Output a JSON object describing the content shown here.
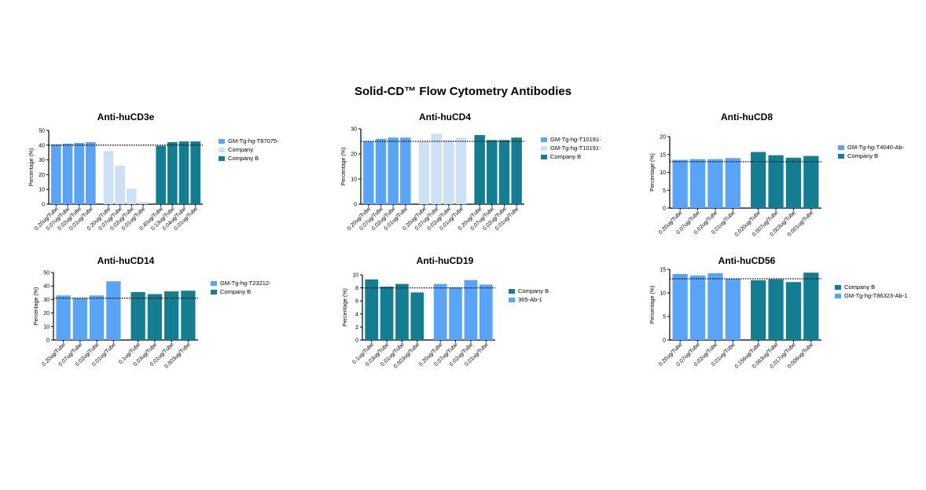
{
  "page": {
    "title": "Solid-CD™ Flow Cytometry Antibodies"
  },
  "colors": {
    "blue": "#5aa4f8",
    "light": "#cce0f6",
    "teal": "#137e92",
    "refline": "#000000"
  },
  "chart_data": [
    {
      "type": "bar",
      "title": "Anti-huCD3e",
      "ylabel": "Percentage (%)",
      "ylim": [
        0,
        50
      ],
      "yticks": [
        0,
        10,
        20,
        30,
        40,
        50
      ],
      "reference_line": 40,
      "categories": [
        "0.20ug/Tube",
        "0.07ug/Tube",
        "0.02ug/Tube",
        "0.01ug/Tube",
        "0.20ug/Tube",
        "0.07ug/Tube",
        "0.02ug/Tube",
        "0.01ug/Tube",
        "0.40ug/Tube",
        "0.13ug/Tube",
        "0.04ug/Tube",
        "0.01ug/Tube"
      ],
      "groups": [
        {
          "color": "blue",
          "values": [
            40.5,
            41,
            41.5,
            42
          ]
        },
        {
          "color": "light",
          "values": [
            36,
            26,
            10.5,
            1.5
          ]
        },
        {
          "color": "teal",
          "values": [
            39.5,
            42,
            42.5,
            42.5
          ]
        }
      ],
      "legend": [
        {
          "color": "blue",
          "label": "GM-Tg-hg-T87075-"
        },
        {
          "color": "light",
          "label": "Company"
        },
        {
          "color": "teal",
          "label": "Company B"
        }
      ]
    },
    {
      "type": "bar",
      "title": "Anti-huCD4",
      "ylabel": "Percentage (%)",
      "ylim": [
        0,
        30
      ],
      "yticks": [
        0,
        10,
        20,
        30
      ],
      "reference_line": 25,
      "categories": [
        "0.20ug/Tube",
        "0.07ug/Tube",
        "0.02ug/Tube",
        "0.01ug/Tube",
        "0.20ug/Tube",
        "0.07ug/Tube",
        "0.02ug/Tube",
        "0.01ug/Tube",
        "0.20ug/Tube",
        "0.07ug/Tube",
        "0.02ug/Tube",
        "0.01ug/Tube"
      ],
      "groups": [
        {
          "color": "blue",
          "values": [
            25,
            26,
            26.5,
            26.5
          ]
        },
        {
          "color": "light",
          "values": [
            25,
            28,
            25.5,
            26.5
          ]
        },
        {
          "color": "teal",
          "values": [
            27.5,
            25.5,
            25.5,
            26.5
          ]
        }
      ],
      "legend": [
        {
          "color": "blue",
          "label": "GM-Tg-hg-T10191-"
        },
        {
          "color": "light",
          "label": "GM-Tg-hg-T10191-"
        },
        {
          "color": "teal",
          "label": "Company B"
        }
      ]
    },
    {
      "type": "bar",
      "title": "Anti-huCD8",
      "ylabel": "Percentage (%)",
      "ylim": [
        0,
        20
      ],
      "yticks": [
        0,
        5,
        10,
        15,
        20
      ],
      "reference_line": 13,
      "categories": [
        "0.20ug/Tube",
        "0.07ug/Tube",
        "0.02ug/Tube",
        "0.01ug/Tube",
        "0.020ug/Tube",
        "0.007ug/Tube",
        "0.003ug/Tube",
        "0.001ug/Tube"
      ],
      "groups": [
        {
          "color": "blue",
          "values": [
            13.5,
            13.7,
            13.7,
            14
          ]
        },
        {
          "color": "teal",
          "values": [
            15.7,
            14.8,
            14.1,
            14.6
          ]
        }
      ],
      "legend": [
        {
          "color": "blue",
          "label": "GM-Tg-hg-T4040-Ab-"
        },
        {
          "color": "teal",
          "label": "Company B"
        }
      ]
    },
    {
      "type": "bar",
      "title": "Anti-huCD14",
      "ylabel": "Percentage (%)",
      "ylim": [
        0,
        50
      ],
      "yticks": [
        0,
        10,
        20,
        30,
        40,
        50
      ],
      "reference_line": 31,
      "categories": [
        "0.20ug/Tube",
        "0.07ug/Tube",
        "0.02ug/Tube",
        "0.01ug/Tube",
        "0.1ug/Tube",
        "0.03ug/Tube",
        "0.01ug/Tube",
        "0.003ug/Tube"
      ],
      "groups": [
        {
          "color": "blue",
          "values": [
            33,
            31,
            33,
            43.5
          ]
        },
        {
          "color": "teal",
          "values": [
            35.5,
            34,
            36,
            36.5
          ]
        }
      ],
      "legend": [
        {
          "color": "blue",
          "label": "GM-Tg-hg-T23212-"
        },
        {
          "color": "teal",
          "label": "Company B"
        }
      ]
    },
    {
      "type": "bar",
      "title": "Anti-huCD19",
      "ylabel": "Percentage (%)",
      "ylim": [
        0,
        10
      ],
      "yticks": [
        0,
        2,
        4,
        6,
        8,
        10
      ],
      "reference_line": 8,
      "categories": [
        "0.1ug/Tube",
        "0.03ug/Tube",
        "0.01ug/Tube",
        "0.003ug/Tube",
        "0.20ug/Tube",
        "0.07ug/Tube",
        "0.02ug/Tube",
        "0.01ug/Tube"
      ],
      "groups": [
        {
          "color": "teal",
          "values": [
            9.3,
            8.2,
            8.6,
            7.3
          ]
        },
        {
          "color": "blue",
          "values": [
            8.6,
            8.1,
            9.2,
            8.5
          ]
        }
      ],
      "legend": [
        {
          "color": "teal",
          "label": "Company B"
        },
        {
          "color": "blue",
          "label": "365-Ab-1"
        }
      ]
    },
    {
      "type": "bar",
      "title": "Anti-huCD56",
      "ylabel": "Percentage (%)",
      "ylim": [
        0,
        15
      ],
      "yticks": [
        0,
        5,
        10,
        15
      ],
      "reference_line": 13,
      "categories": [
        "0.20ug/Tube",
        "0.07ug/Tube",
        "0.02ug/Tube",
        "0.01ug/Tube",
        "0.156ug/Tube",
        "0.063ug/Tube",
        "0.017ug/Tube",
        "0.006ug/Tube"
      ],
      "groups": [
        {
          "color": "blue",
          "values": [
            14,
            13.7,
            14.2,
            13
          ]
        },
        {
          "color": "teal",
          "values": [
            12.7,
            12.9,
            12.3,
            14.3
          ]
        }
      ],
      "legend": [
        {
          "color": "teal",
          "label": "Company B"
        },
        {
          "color": "blue",
          "label": "GM-Tg-hg-T86323-Ab-1"
        }
      ]
    }
  ]
}
